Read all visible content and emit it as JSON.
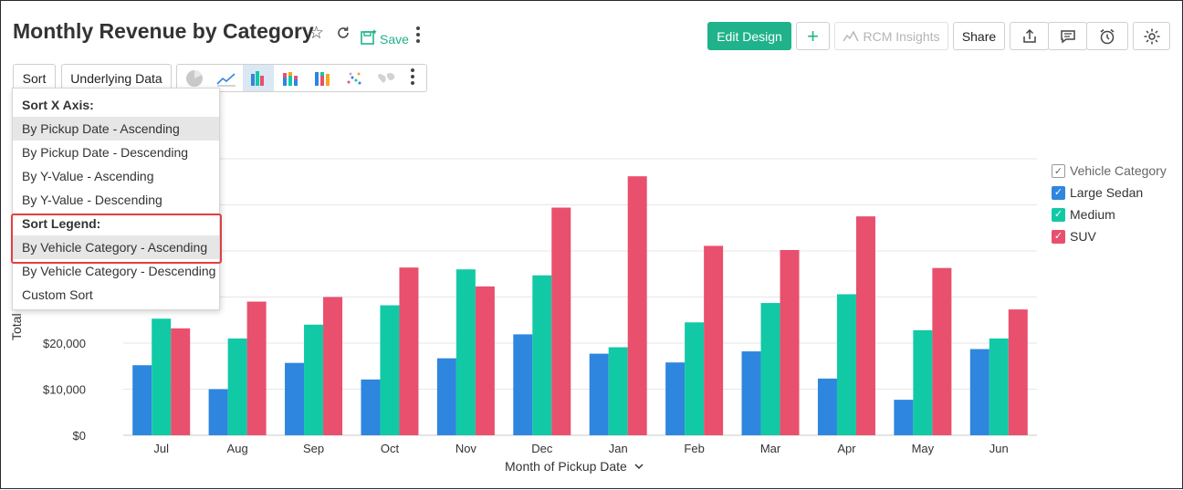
{
  "header": {
    "title": "Monthly Revenue by Category",
    "save_label": "Save",
    "edit_design_label": "Edit Design",
    "add_label": "+",
    "rcm_label": "RCM Insights",
    "share_label": "Share"
  },
  "toolbar": {
    "sort_label": "Sort",
    "underlying_label": "Underlying Data",
    "chart_types": [
      "pie",
      "line",
      "bar",
      "stacked-bar",
      "stacked-percent-bar",
      "scatter",
      "map"
    ],
    "active_chart_type": "bar"
  },
  "sort_menu": {
    "x_header": "Sort X Axis:",
    "x_options": [
      "By Pickup Date - Ascending",
      "By Pickup Date - Descending",
      "By Y-Value - Ascending",
      "By Y-Value - Descending"
    ],
    "legend_header": "Sort Legend:",
    "legend_options": [
      "By Vehicle Category - Ascending",
      "By Vehicle Category - Descending",
      "Custom Sort"
    ],
    "selected_x": "By Pickup Date - Ascending",
    "selected_legend": "By Vehicle Category - Ascending"
  },
  "legend": {
    "title": "Vehicle Category",
    "items": [
      "Large Sedan",
      "Medium",
      "SUV"
    ]
  },
  "colors": {
    "accent": "#20b28a",
    "Large Sedan": "#2e86de",
    "Medium": "#12c9a6",
    "SUV": "#e8506e",
    "highlight": "#e04040"
  },
  "chart_data": {
    "type": "bar",
    "xlabel": "Month of Pickup Date",
    "ylabel": "Total To",
    "categories": [
      "Jul",
      "Aug",
      "Sep",
      "Oct",
      "Nov",
      "Dec",
      "Jan",
      "Feb",
      "Mar",
      "Apr",
      "May",
      "Jun"
    ],
    "series": [
      {
        "name": "Large Sedan",
        "values": [
          15200,
          10000,
          15700,
          12100,
          16700,
          21900,
          17700,
          15800,
          18200,
          12300,
          7700,
          18700
        ]
      },
      {
        "name": "Medium",
        "values": [
          25300,
          21000,
          24000,
          28200,
          36000,
          34700,
          19100,
          24500,
          28700,
          30600,
          22800,
          21000
        ]
      },
      {
        "name": "SUV",
        "values": [
          23200,
          29000,
          30000,
          36400,
          32300,
          49400,
          56200,
          41100,
          40200,
          47500,
          36300,
          27300
        ]
      }
    ],
    "yticks": [
      "$0",
      "$10,000",
      "$20,000"
    ],
    "ylim": [
      0,
      60000
    ],
    "grid": true,
    "legend_position": "right"
  }
}
